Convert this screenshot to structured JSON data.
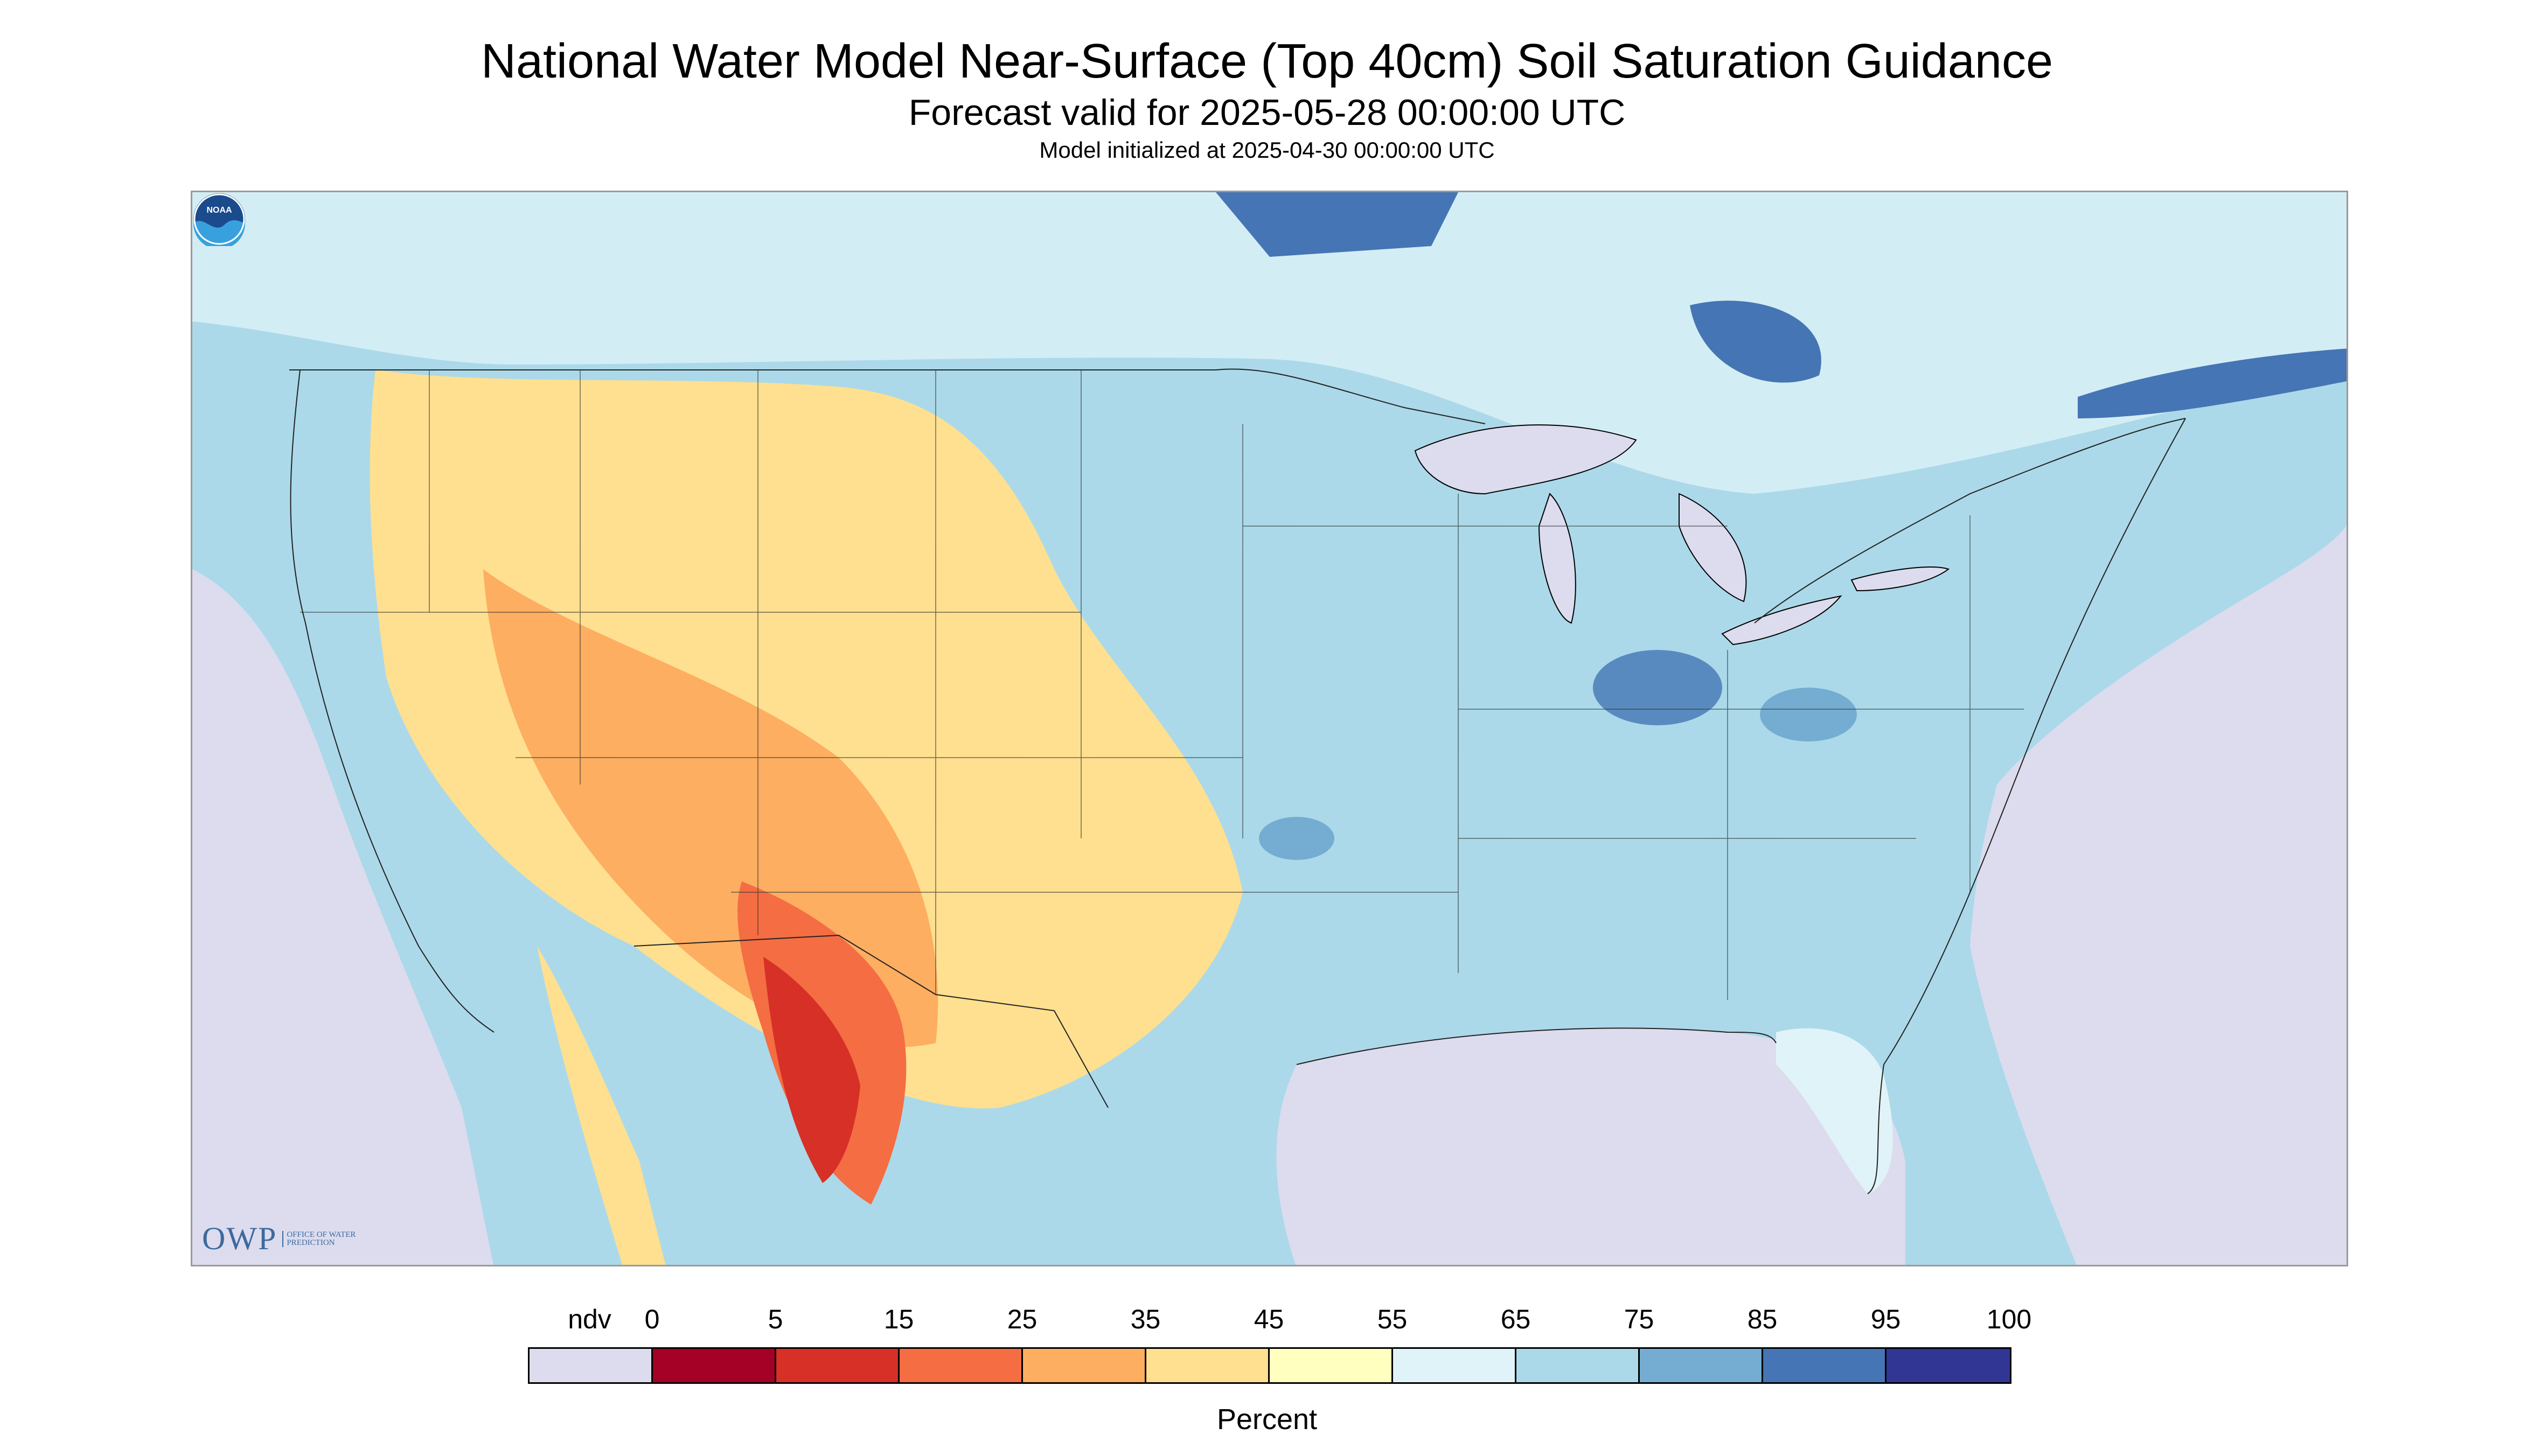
{
  "title": "National Water Model Near-Surface (Top 40cm) Soil Saturation Guidance",
  "subtitle": "Forecast valid for 2025-05-28 00:00:00 UTC",
  "caption": "Model initialized at 2025-04-30 00:00:00 UTC",
  "logos": {
    "left_text": "OWP",
    "left_subtext": "OFFICE OF WATER PREDICTION",
    "right_icon": "noaa-logo-icon",
    "right_text": "NOAA"
  },
  "legend": {
    "unit_label": "Percent",
    "tick_labels": [
      "ndv",
      "0",
      "5",
      "15",
      "25",
      "35",
      "45",
      "55",
      "65",
      "75",
      "85",
      "95",
      "100"
    ],
    "bins": [
      {
        "range": "ndv",
        "color": "#dcdcee"
      },
      {
        "range": "0-5",
        "color": "#a50026"
      },
      {
        "range": "5-15",
        "color": "#d73027"
      },
      {
        "range": "15-25",
        "color": "#f46d43"
      },
      {
        "range": "25-35",
        "color": "#fdae61"
      },
      {
        "range": "35-45",
        "color": "#fee090"
      },
      {
        "range": "45-55",
        "color": "#ffffbf"
      },
      {
        "range": "55-65",
        "color": "#e0f3f8"
      },
      {
        "range": "65-75",
        "color": "#abd9e9"
      },
      {
        "range": "75-85",
        "color": "#74add1"
      },
      {
        "range": "85-95",
        "color": "#4575b4"
      },
      {
        "range": "95-100",
        "color": "#313695"
      }
    ]
  }
}
